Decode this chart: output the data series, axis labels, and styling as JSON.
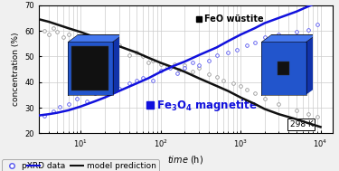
{
  "ylabel": "concentration (%)",
  "xlim": [
    3.0,
    14000.0
  ],
  "ylim": [
    20,
    70
  ],
  "yticks": [
    20,
    30,
    40,
    50,
    60,
    70
  ],
  "bg_color": "#f0f0f0",
  "plot_bg": "#ffffff",
  "grid_color": "#cccccc",
  "wustite_label": "FeO wüstite",
  "magnetite_label": "Fe₃O₄ magnetite",
  "temp_label": "298 K",
  "legend_scatter": "pXRD data",
  "legend_line": "model prediction",
  "scatter_gray_edge": "#999999",
  "scatter_blue_edge": "#5555ee",
  "line_wustite_color": "#111111",
  "line_magnetite_color": "#1111dd",
  "wustite_data_x": [
    3.5,
    4.0,
    4.5,
    5.0,
    6.0,
    7.0,
    8.0,
    9.0,
    10.0,
    12.0,
    15.0,
    18.0,
    20.0,
    25.0,
    30.0,
    40.0,
    50.0,
    60.0,
    70.0,
    80.0,
    100.0,
    120.0,
    150.0,
    170.0,
    200.0,
    250.0,
    300.0,
    400.0,
    500.0,
    600.0,
    800.0,
    1000.0,
    1200.0,
    1500.0,
    2000.0,
    3000.0,
    5000.0,
    7000.0,
    9000.0
  ],
  "wustite_data_y": [
    60.0,
    58.5,
    61.0,
    59.5,
    57.5,
    58.5,
    56.0,
    54.5,
    57.0,
    56.5,
    54.0,
    55.5,
    54.5,
    53.0,
    54.5,
    50.5,
    51.5,
    50.0,
    47.5,
    48.5,
    47.0,
    46.0,
    47.0,
    45.0,
    46.5,
    44.0,
    45.5,
    43.0,
    42.0,
    40.5,
    39.5,
    38.5,
    37.0,
    35.5,
    33.5,
    31.5,
    29.0,
    27.5,
    26.5
  ],
  "magnetite_data_x": [
    3.5,
    4.5,
    5.5,
    7.0,
    9.0,
    12.0,
    15.0,
    20.0,
    25.0,
    30.0,
    40.0,
    50.0,
    60.0,
    80.0,
    100.0,
    130.0,
    160.0,
    200.0,
    250.0,
    300.0,
    400.0,
    500.0,
    700.0,
    900.0,
    1200.0,
    1500.0,
    2000.0,
    3000.0,
    5000.0,
    7000.0,
    9000.0
  ],
  "magnetite_data_y": [
    27.0,
    28.5,
    30.5,
    31.5,
    33.5,
    32.5,
    35.5,
    36.5,
    38.5,
    37.5,
    39.5,
    40.5,
    41.5,
    40.5,
    44.5,
    45.5,
    43.5,
    45.5,
    47.5,
    46.5,
    48.5,
    50.5,
    51.5,
    52.5,
    54.5,
    55.5,
    57.5,
    58.5,
    59.5,
    60.5,
    62.5
  ],
  "wustite_model_x": [
    3.0,
    4.0,
    5.0,
    7.0,
    10.0,
    15.0,
    20.0,
    30.0,
    50.0,
    70.0,
    100.0,
    150.0,
    200.0,
    300.0,
    500.0,
    700.0,
    1000.0,
    1500.0,
    2000.0,
    3000.0,
    5000.0,
    7000.0,
    10000.0
  ],
  "wustite_model_y": [
    64.5,
    63.5,
    62.5,
    61.0,
    59.5,
    57.5,
    56.0,
    54.0,
    51.5,
    49.5,
    47.5,
    45.5,
    44.0,
    41.5,
    38.5,
    36.5,
    34.0,
    31.5,
    29.5,
    27.5,
    25.5,
    24.0,
    22.5
  ],
  "magnetite_model_x": [
    3.0,
    4.0,
    5.0,
    7.0,
    10.0,
    15.0,
    20.0,
    30.0,
    50.0,
    70.0,
    100.0,
    150.0,
    200.0,
    300.0,
    500.0,
    700.0,
    1000.0,
    1500.0,
    2000.0,
    3000.0,
    5000.0,
    7000.0,
    10000.0
  ],
  "magnetite_model_y": [
    27.0,
    27.5,
    28.0,
    29.0,
    30.5,
    32.5,
    34.0,
    36.5,
    39.5,
    41.5,
    44.0,
    46.5,
    48.0,
    50.5,
    53.5,
    56.0,
    58.5,
    61.0,
    63.0,
    65.0,
    67.5,
    69.5,
    71.5
  ],
  "cube_left_blue_front": "#2255cc",
  "cube_left_blue_top": "#4477ee",
  "cube_left_blue_side": "#1133aa",
  "cube_right_blue_front": "#2255cc",
  "cube_right_blue_top": "#4477ee",
  "cube_right_blue_side": "#1133aa",
  "cube_black": "#111111",
  "cube_black_side": "#333333"
}
